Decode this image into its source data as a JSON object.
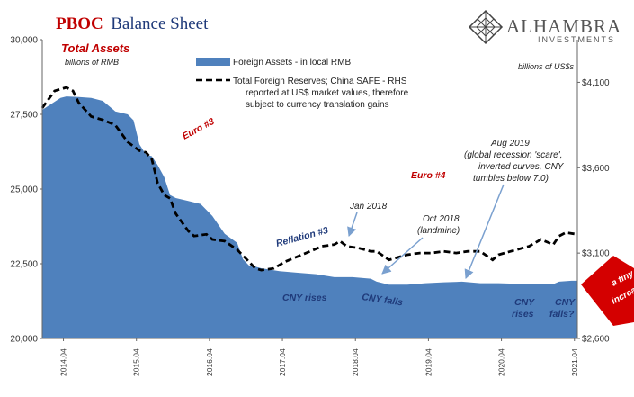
{
  "title": {
    "part1": "PBOC",
    "part2": "Balance Sheet"
  },
  "logo": {
    "main": "ALHAMBRA",
    "sub": "INVESTMENTS"
  },
  "left_axis_title": "Total Assets",
  "left_units": "billions of RMB",
  "right_units": "billions of US$s",
  "legend": {
    "area": "Foreign Assets - in local RMB",
    "line": [
      "Total Foreign Reserves; China SAFE - RHS",
      "reported at US$ market values, therefore",
      "subject to currency translation gains"
    ]
  },
  "annotations": {
    "euro3": "Euro #3",
    "euro4": "Euro #4",
    "reflation3": "Reflation #3",
    "jan2018": "Jan 2018",
    "oct2018": [
      "Oct 2018",
      "(landmine)"
    ],
    "aug2019": [
      "Aug 2019",
      "(global recession 'scare',",
      "inverted curves, CNY",
      "tumbles below 7.0)"
    ],
    "cny_rises_1": "CNY rises",
    "cny_falls_1": "CNY falls",
    "cny_rises_2": [
      "CNY",
      "rises"
    ],
    "cny_falls_2": [
      "CNY",
      "falls?"
    ],
    "tiny_increase": [
      "a tiny",
      "increase"
    ]
  },
  "colors": {
    "area": "#4f81bd",
    "line": "#000000",
    "accent_red": "#c00000",
    "navy": "#1f3a7a",
    "arrow": "#7aa0cf"
  },
  "chart_data": {
    "type": "area",
    "x_ticks": [
      "2014.04",
      "2015.04",
      "2016.04",
      "2017.04",
      "2018.04",
      "2019.04",
      "2020.04",
      "2021.04"
    ],
    "x_range": [
      2014.0,
      2021.33
    ],
    "left_axis": {
      "range": [
        20000,
        30000
      ],
      "ticks": [
        20000,
        22500,
        25000,
        27500,
        30000
      ],
      "tick_labels": [
        "20,000",
        "22,500",
        "25,000",
        "27,500",
        "30,000"
      ]
    },
    "right_axis": {
      "range": [
        2600,
        4350
      ],
      "ticks": [
        2600,
        3100,
        3600,
        4100
      ],
      "tick_labels": [
        "$2,600",
        "$3,100",
        "$3,600",
        "$4,100"
      ]
    },
    "series": [
      {
        "name": "Foreign Assets - in local RMB",
        "axis": "left",
        "points": [
          [
            2014.0,
            27650
          ],
          [
            2014.25,
            28050
          ],
          [
            2014.33,
            28100
          ],
          [
            2014.5,
            28080
          ],
          [
            2014.67,
            28050
          ],
          [
            2014.83,
            27950
          ],
          [
            2015.0,
            27600
          ],
          [
            2015.17,
            27500
          ],
          [
            2015.25,
            27300
          ],
          [
            2015.33,
            26500
          ],
          [
            2015.42,
            26150
          ],
          [
            2015.5,
            26100
          ],
          [
            2015.58,
            25800
          ],
          [
            2015.67,
            25400
          ],
          [
            2015.75,
            24800
          ],
          [
            2015.83,
            24700
          ],
          [
            2016.0,
            24600
          ],
          [
            2016.17,
            24500
          ],
          [
            2016.33,
            24100
          ],
          [
            2016.5,
            23500
          ],
          [
            2016.67,
            23200
          ],
          [
            2016.75,
            22650
          ],
          [
            2016.83,
            22450
          ],
          [
            2016.92,
            22400
          ],
          [
            2017.0,
            22350
          ],
          [
            2017.25,
            22250
          ],
          [
            2017.5,
            22200
          ],
          [
            2017.75,
            22150
          ],
          [
            2018.0,
            22050
          ],
          [
            2018.25,
            22050
          ],
          [
            2018.5,
            22000
          ],
          [
            2018.58,
            21900
          ],
          [
            2018.75,
            21800
          ],
          [
            2019.0,
            21800
          ],
          [
            2019.25,
            21850
          ],
          [
            2019.5,
            21880
          ],
          [
            2019.75,
            21900
          ],
          [
            2020.0,
            21850
          ],
          [
            2020.25,
            21850
          ],
          [
            2020.5,
            21830
          ],
          [
            2020.75,
            21820
          ],
          [
            2021.0,
            21820
          ],
          [
            2021.08,
            21900
          ],
          [
            2021.25,
            21930
          ],
          [
            2021.33,
            21930
          ]
        ]
      },
      {
        "name": "Total Foreign Reserves; China SAFE - RHS",
        "axis": "right",
        "points": [
          [
            2014.0,
            3950
          ],
          [
            2014.17,
            4050
          ],
          [
            2014.33,
            4070
          ],
          [
            2014.42,
            4050
          ],
          [
            2014.5,
            3980
          ],
          [
            2014.67,
            3900
          ],
          [
            2014.83,
            3880
          ],
          [
            2015.0,
            3850
          ],
          [
            2015.17,
            3750
          ],
          [
            2015.33,
            3700
          ],
          [
            2015.42,
            3690
          ],
          [
            2015.5,
            3650
          ],
          [
            2015.58,
            3510
          ],
          [
            2015.67,
            3440
          ],
          [
            2015.75,
            3420
          ],
          [
            2015.83,
            3330
          ],
          [
            2016.0,
            3230
          ],
          [
            2016.08,
            3200
          ],
          [
            2016.25,
            3210
          ],
          [
            2016.33,
            3180
          ],
          [
            2016.5,
            3170
          ],
          [
            2016.67,
            3120
          ],
          [
            2016.83,
            3050
          ],
          [
            2016.92,
            3010
          ],
          [
            2017.0,
            3000
          ],
          [
            2017.17,
            3010
          ],
          [
            2017.33,
            3050
          ],
          [
            2017.5,
            3080
          ],
          [
            2017.67,
            3110
          ],
          [
            2017.83,
            3140
          ],
          [
            2018.0,
            3150
          ],
          [
            2018.08,
            3170
          ],
          [
            2018.17,
            3140
          ],
          [
            2018.33,
            3130
          ],
          [
            2018.5,
            3110
          ],
          [
            2018.58,
            3110
          ],
          [
            2018.75,
            3060
          ],
          [
            2018.83,
            3070
          ],
          [
            2019.0,
            3090
          ],
          [
            2019.17,
            3100
          ],
          [
            2019.33,
            3100
          ],
          [
            2019.5,
            3110
          ],
          [
            2019.67,
            3100
          ],
          [
            2019.83,
            3110
          ],
          [
            2020.0,
            3110
          ],
          [
            2020.17,
            3060
          ],
          [
            2020.25,
            3090
          ],
          [
            2020.5,
            3120
          ],
          [
            2020.67,
            3140
          ],
          [
            2020.83,
            3180
          ],
          [
            2021.0,
            3150
          ],
          [
            2021.08,
            3200
          ],
          [
            2021.17,
            3220
          ],
          [
            2021.33,
            3210
          ]
        ]
      }
    ]
  }
}
